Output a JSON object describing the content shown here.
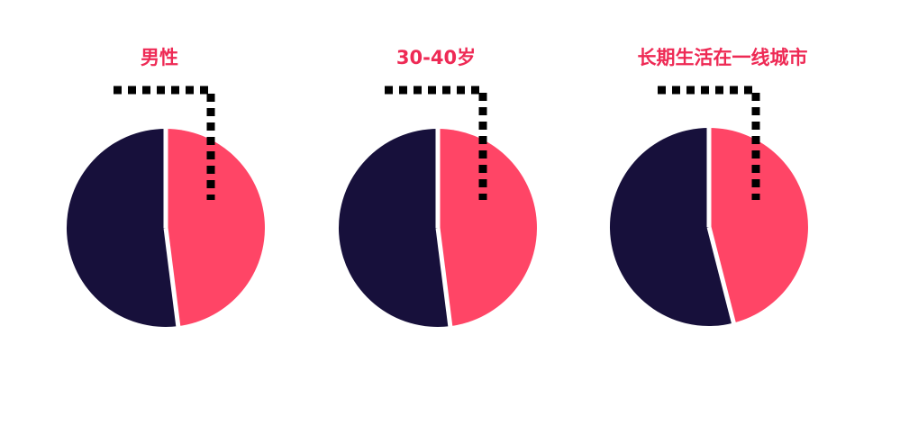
{
  "chart_data": [
    {
      "type": "pie",
      "title": "男性",
      "slices": [
        {
          "name": "",
          "value": 48,
          "color": "#ff4566"
        },
        {
          "name": "",
          "value": 52,
          "color": "#17103b"
        }
      ]
    },
    {
      "type": "pie",
      "title": "30-40岁",
      "slices": [
        {
          "name": "",
          "value": 48,
          "color": "#ff4566"
        },
        {
          "name": "",
          "value": 52,
          "color": "#17103b"
        }
      ]
    },
    {
      "type": "pie",
      "title": "长期生活在一线城市",
      "slices": [
        {
          "name": "",
          "value": 46,
          "color": "#ff4566"
        },
        {
          "name": "",
          "value": 54,
          "color": "#17103b"
        }
      ]
    }
  ],
  "colors": {
    "title": "#ee2a55",
    "leader_line": "#000000",
    "gap": "#ffffff"
  }
}
